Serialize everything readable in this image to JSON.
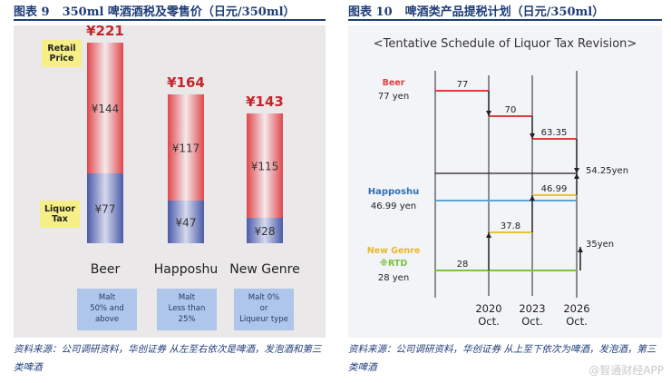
{
  "figures": [
    {
      "number": "图表 9",
      "title": "350ml 啤酒酒税及零售价（日元/350ml）",
      "source": "资料来源：公司调研资料，华创证券  从左至右依次是啤酒，发泡酒和第三类啤酒"
    },
    {
      "number": "图表 10",
      "title": "啤酒类产品提税计划（日元/350ml）",
      "source": "资料来源：公司调研资料，华创证券   从上至下依次为啤酒，发泡酒，第三类啤酒"
    }
  ],
  "watermark": "@智通财经APP",
  "chart_data": [
    {
      "type": "bar",
      "stacked": true,
      "categories": [
        "Beer",
        "Happoshu",
        "New Genre"
      ],
      "series": [
        {
          "name": "Liquor Tax",
          "values": [
            77,
            47,
            28
          ],
          "labels": [
            "¥77",
            "¥47",
            "¥28"
          ],
          "color": "#4a5aa8"
        },
        {
          "name": "Retail Price",
          "values": [
            144,
            117,
            115
          ],
          "labels": [
            "¥144",
            "¥117",
            "¥115"
          ],
          "color": "#e0474c"
        }
      ],
      "totals": [
        221,
        164,
        143
      ],
      "total_labels": [
        "¥221",
        "¥164",
        "¥143"
      ],
      "legend": {
        "retail": "Retail\nPrice",
        "tax": "Liquor\nTax"
      },
      "notes": [
        [
          "Malt",
          "50% and",
          "above"
        ],
        [
          "Malt",
          "Less than",
          "25%"
        ],
        [
          "Malt 0%",
          "or",
          "Liqueur type"
        ]
      ],
      "colors": {
        "background": "#eae8e9",
        "red": "#e0474c",
        "blue": "#4a5aa8",
        "legend_box": "#f6ef87",
        "note_box": "#aec6ea"
      }
    },
    {
      "type": "line",
      "title": "<Tentative Schedule of Liquor Tax Revision>",
      "x_ticks": [
        [
          "2020",
          "Oct."
        ],
        [
          "2023",
          "Oct."
        ],
        [
          "2026",
          "Oct."
        ]
      ],
      "series": [
        {
          "name": "Beer",
          "value_label": "77 yen",
          "color": "#e33b3b",
          "steps": [
            {
              "from": "start",
              "to": "2020 Oct.",
              "value": 77
            },
            {
              "from": "2020 Oct.",
              "to": "2023 Oct.",
              "value": 70
            },
            {
              "from": "2023 Oct.",
              "to": "2026 Oct.",
              "value": 63.35
            },
            {
              "from": "2026 Oct.",
              "to": "end",
              "value": 54.25
            }
          ]
        },
        {
          "name": "Happoshu",
          "value_label": "46.99 yen",
          "color": "#5aa6d6",
          "steps": [
            {
              "from": "start",
              "to": "2023 Oct.",
              "value": 46.99
            },
            {
              "from": "2023 Oct.",
              "to": "2026 Oct.",
              "value": 46.99
            },
            {
              "from": "2026 Oct.",
              "to": "end",
              "value": 54.25
            }
          ]
        },
        {
          "name": "New Genre\n※RTD",
          "value_label": "28 yen",
          "color": "#7cc242",
          "steps": [
            {
              "from": "start",
              "to": "2020 Oct.",
              "value": 28
            },
            {
              "from": "2020 Oct.",
              "to": "2023 Oct.",
              "value": 37.8
            },
            {
              "from": "2023 Oct.",
              "to": "2026 Oct.",
              "value": 46.99
            },
            {
              "from": "2026 Oct.",
              "to": "end",
              "value": 54.25
            }
          ]
        }
      ],
      "value_labels": [
        "77",
        "70",
        "63.35",
        "54.25yen",
        "46.99",
        "37.8",
        "28",
        "35yen"
      ],
      "legend_names": [
        "Beer",
        "Happoshu",
        "New Genre",
        "※RTD"
      ],
      "colors": {
        "background": "#f3f4f7"
      }
    }
  ]
}
